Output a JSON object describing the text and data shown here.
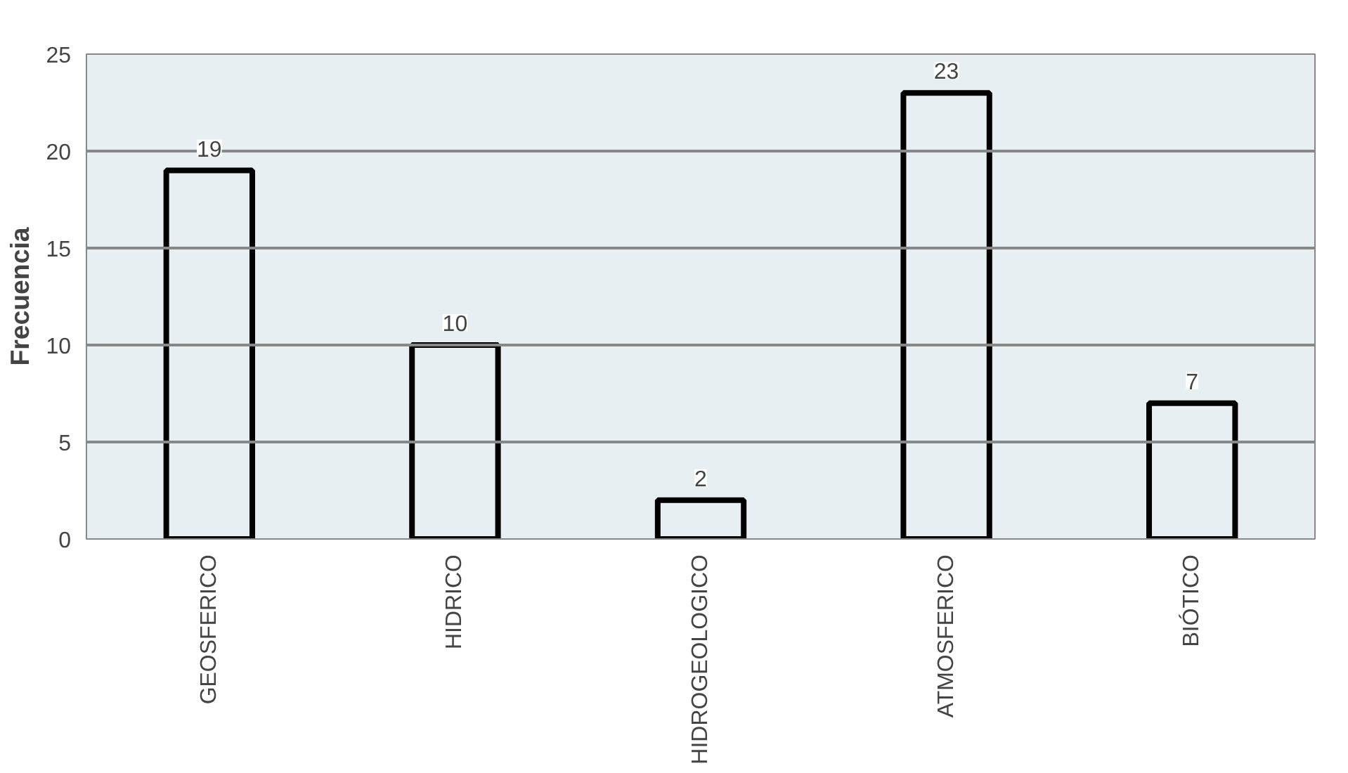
{
  "chart_data": {
    "type": "bar",
    "ylabel": "Frecuencia",
    "categories": [
      "GEOSFERICO",
      "HIDRICO",
      "HIDROGEOLOGICO",
      "ATMOSFERICO",
      "BIÓTICO"
    ],
    "values": [
      19,
      10,
      2,
      23,
      7
    ],
    "color": "#e8eff3",
    "ylim": [
      0,
      25
    ],
    "yticks": [
      0,
      5,
      10,
      15,
      20,
      25
    ],
    "grid": "y",
    "data_labels": true
  }
}
